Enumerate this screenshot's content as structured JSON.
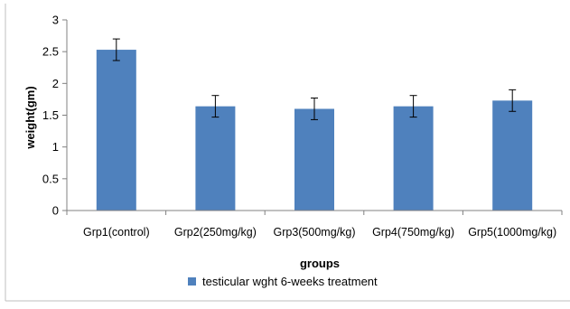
{
  "chart_data": {
    "type": "bar",
    "categories": [
      "Grp1(control)",
      "Grp2(250mg/kg)",
      "Grp3(500mg/kg)",
      "Grp4(750mg/kg)",
      "Grp5(1000mg/kg)"
    ],
    "series": [
      {
        "name": "testicular wght 6-weeks treatment",
        "values": [
          2.53,
          1.64,
          1.6,
          1.64,
          1.73
        ],
        "errors": [
          0.17,
          0.17,
          0.17,
          0.17,
          0.17
        ],
        "color": "#4f81bd"
      }
    ],
    "xlabel": "groups",
    "ylabel": "weight(gm)",
    "ylim": [
      0,
      3
    ],
    "yticks": [
      0,
      0.5,
      1,
      1.5,
      2,
      2.5,
      3
    ],
    "ytick_labels": [
      "0",
      "0.5",
      "1",
      "1.5",
      "2",
      "2.5",
      "3"
    ],
    "grid": false,
    "legend_position": "bottom"
  }
}
